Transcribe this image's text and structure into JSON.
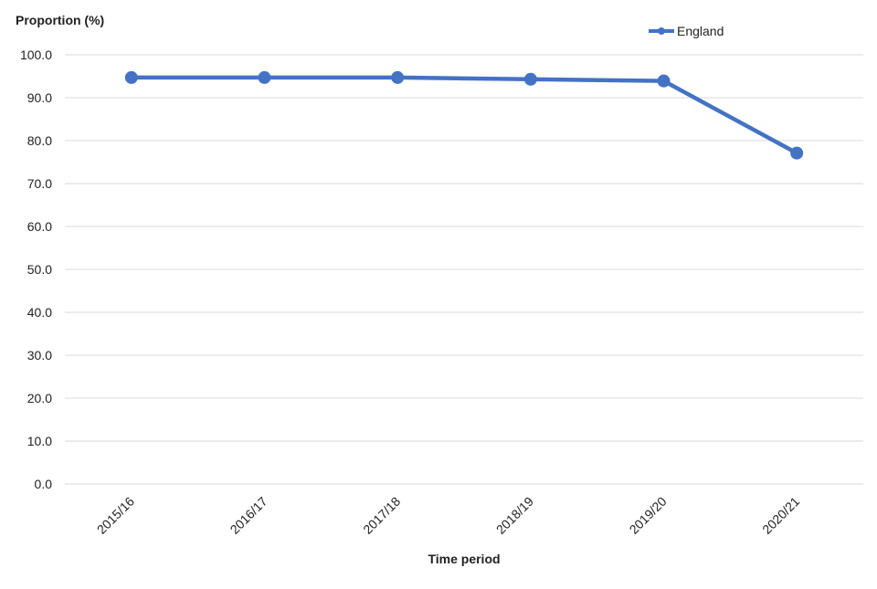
{
  "chart_data": {
    "type": "line",
    "y_axis_title": "Proportion (%)",
    "x_axis_title": "Time period",
    "categories": [
      "2015/16",
      "2016/17",
      "2017/18",
      "2018/19",
      "2019/20",
      "2020/21"
    ],
    "series": [
      {
        "name": "England",
        "color": "#4472c4",
        "values": [
          94.7,
          94.7,
          94.7,
          94.3,
          93.9,
          77.1
        ]
      }
    ],
    "ylim": [
      0,
      100
    ],
    "yticks": [
      {
        "value": 0,
        "label": "0.0"
      },
      {
        "value": 10,
        "label": "10.0"
      },
      {
        "value": 20,
        "label": "20.0"
      },
      {
        "value": 30,
        "label": "30.0"
      },
      {
        "value": 40,
        "label": "40.0"
      },
      {
        "value": 50,
        "label": "50.0"
      },
      {
        "value": 60,
        "label": "60.0"
      },
      {
        "value": 70,
        "label": "70.0"
      },
      {
        "value": 80,
        "label": "80.0"
      },
      {
        "value": 90,
        "label": "90.0"
      },
      {
        "value": 100,
        "label": "100.0"
      }
    ],
    "grid": true,
    "legend": "top-right"
  }
}
